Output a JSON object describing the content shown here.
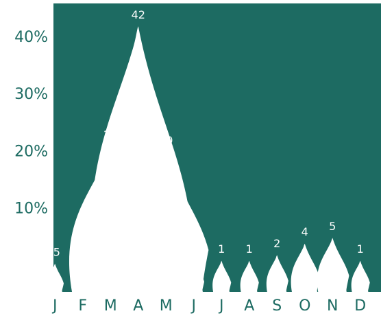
{
  "chart_data": {
    "type": "flame",
    "categories": [
      "J",
      "F",
      "M",
      "A",
      "M",
      "J",
      "J",
      "A",
      "S",
      "O",
      "N",
      "D"
    ],
    "values": [
      0.5,
      1,
      21,
      42,
      20,
      1.5,
      1,
      1,
      2,
      4,
      5,
      1
    ],
    "value_labels": [
      ".5",
      "1",
      "21",
      "42",
      "20",
      "1.5",
      "1",
      "1",
      "2",
      "4",
      "5",
      "1"
    ],
    "color": "#ffffff",
    "background": "#1d6b62",
    "ylim": [
      0,
      46
    ],
    "yticks": [
      {
        "value": 10,
        "label": "10%"
      },
      {
        "value": 20,
        "label": "20%"
      },
      {
        "value": 30,
        "label": "30%"
      },
      {
        "value": 40,
        "label": "40%"
      }
    ],
    "grid": false
  }
}
